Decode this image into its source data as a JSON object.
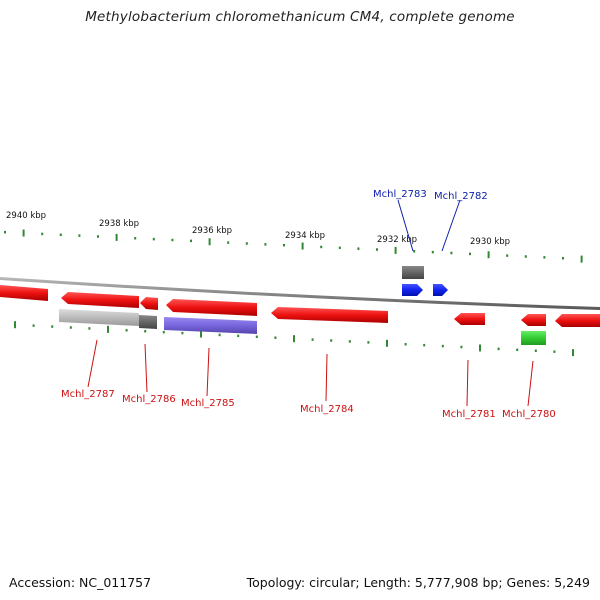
{
  "title": "Methylobacterium chloromethanicum CM4, complete genome",
  "footer": {
    "accession": "Accession: NC_011757",
    "summary": "Topology: circular; Length: 5,777,908 bp; Genes: 5,249"
  },
  "colors": {
    "gene_forward": "#ee1111",
    "gene_gray": "#bbbbbb",
    "gene_dark": "#666666",
    "gene_purple": "#7766dd",
    "gene_blue": "#1122ee",
    "gene_green": "#33cc33",
    "backbone": "#888888",
    "ticks": "#338833",
    "label_red": "#cc1111",
    "label_blue": "#1122aa"
  },
  "scale_labels": [
    "2940 kbp",
    "2938 kbp",
    "2936 kbp",
    "2934 kbp",
    "2932 kbp",
    "2930 kbp"
  ],
  "gene_labels": [
    {
      "text": "Mchl_2783",
      "color": "blue"
    },
    {
      "text": "Mchl_2782",
      "color": "blue"
    },
    {
      "text": "Mchl_2787",
      "color": "red"
    },
    {
      "text": "Mchl_2786",
      "color": "red"
    },
    {
      "text": "Mchl_2785",
      "color": "red"
    },
    {
      "text": "Mchl_2784",
      "color": "red"
    },
    {
      "text": "Mchl_2781",
      "color": "red"
    },
    {
      "text": "Mchl_2780",
      "color": "red"
    }
  ]
}
